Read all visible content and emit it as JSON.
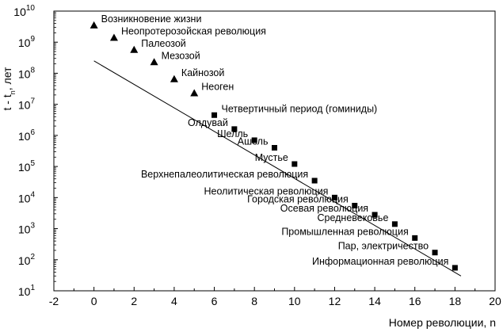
{
  "chart_data": {
    "type": "scatter",
    "xlabel": "Номер революции, n",
    "ylabel": "t - t",
    "ylabel_sub": "n",
    "ylabel_tail": ", лет",
    "xlim": [
      -2,
      20
    ],
    "ylim_log10": [
      1,
      10
    ],
    "y_scale": "log",
    "x_ticks": [
      "-2",
      "0",
      "2",
      "4",
      "6",
      "8",
      "10",
      "12",
      "14",
      "16",
      "18",
      "20"
    ],
    "y_ticks": [
      {
        "base": "10",
        "exp": "1"
      },
      {
        "base": "10",
        "exp": "2"
      },
      {
        "base": "10",
        "exp": "3"
      },
      {
        "base": "10",
        "exp": "4"
      },
      {
        "base": "10",
        "exp": "5"
      },
      {
        "base": "10",
        "exp": "6"
      },
      {
        "base": "10",
        "exp": "7"
      },
      {
        "base": "10",
        "exp": "8"
      },
      {
        "base": "10",
        "exp": "9"
      },
      {
        "base": "10",
        "exp": "10"
      }
    ],
    "trend_line": {
      "x": [
        0,
        18.3
      ],
      "y": [
        250000000,
        30
      ]
    },
    "points": [
      {
        "n": 0,
        "t": 3500000000,
        "marker": "triangle",
        "label": "Возникновение жизни",
        "label_side": "right"
      },
      {
        "n": 1,
        "t": 1400000000,
        "marker": "triangle",
        "label": "Неопротерозойская революция",
        "label_side": "right"
      },
      {
        "n": 2,
        "t": 570000000,
        "marker": "triangle",
        "label": "Палеозой",
        "label_side": "right"
      },
      {
        "n": 3,
        "t": 230000000,
        "marker": "triangle",
        "label": "Мезозой",
        "label_side": "right"
      },
      {
        "n": 4,
        "t": 65000000,
        "marker": "triangle",
        "label": "Кайнозой",
        "label_side": "right"
      },
      {
        "n": 5,
        "t": 23000000,
        "marker": "triangle",
        "label": "Неоген",
        "label_side": "right"
      },
      {
        "n": 6,
        "t": 4500000,
        "marker": "square",
        "label": "Четвертичный период (гоминиды)",
        "label_side": "right"
      },
      {
        "n": 7,
        "t": 1600000,
        "marker": "square",
        "label": "Олдувай",
        "label_side": "left"
      },
      {
        "n": 8,
        "t": 700000,
        "marker": "square",
        "label": "Шелль",
        "label_side": "left"
      },
      {
        "n": 9,
        "t": 400000,
        "marker": "square",
        "label": "Ашель",
        "label_side": "left"
      },
      {
        "n": 10,
        "t": 120000,
        "marker": "square",
        "label": "Мустье",
        "label_side": "left"
      },
      {
        "n": 11,
        "t": 35000,
        "marker": "square",
        "label": "Верхнепалеолитическая революция",
        "label_side": "left"
      },
      {
        "n": 12,
        "t": 10000,
        "marker": "square",
        "label": "Неолитическая революция",
        "label_side": "left"
      },
      {
        "n": 13,
        "t": 5500,
        "marker": "square",
        "label": "Городская революция",
        "label_side": "left"
      },
      {
        "n": 14,
        "t": 2800,
        "marker": "square",
        "label": "Осевая революция",
        "label_side": "left"
      },
      {
        "n": 15,
        "t": 1400,
        "marker": "square",
        "label": "Средневековье",
        "label_side": "left"
      },
      {
        "n": 16,
        "t": 500,
        "marker": "square",
        "label": "Промышленная революция",
        "label_side": "left"
      },
      {
        "n": 17,
        "t": 170,
        "marker": "square",
        "label": "Пар, электричество",
        "label_side": "left"
      },
      {
        "n": 18,
        "t": 55,
        "marker": "square",
        "label": "Информационная революция",
        "label_side": "left"
      }
    ]
  }
}
